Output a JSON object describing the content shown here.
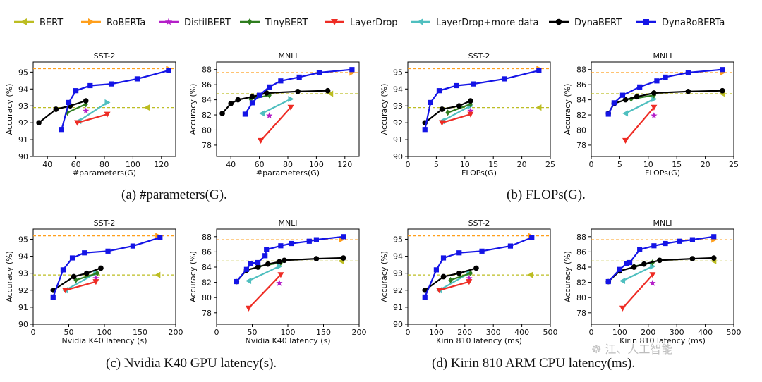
{
  "legend": [
    {
      "name": "BERT",
      "color": "#bcbd22",
      "marker": "tri-left"
    },
    {
      "name": "RoBERTa",
      "color": "#ff9f1c",
      "marker": "tri-right"
    },
    {
      "name": "DistilBERT",
      "color": "#b41ec8",
      "marker": "star"
    },
    {
      "name": "TinyBERT",
      "color": "#2e7d1e",
      "marker": "diamond"
    },
    {
      "name": "LayerDrop",
      "color": "#ee2c24",
      "marker": "tri-down"
    },
    {
      "name": "LayerDrop+more data",
      "color": "#4fbfbf",
      "marker": "tri-left-arrow"
    },
    {
      "name": "DynaBERT",
      "color": "#000000",
      "marker": "circle"
    },
    {
      "name": "DynaRoBERTa",
      "color": "#1414e6",
      "marker": "square"
    }
  ],
  "captions": {
    "a": "(a) #parameters(G).",
    "b": "(b) FLOPs(G).",
    "c": "(c) Nvidia K40 GPU latency(s).",
    "d": "(d) Kirin 810 ARM CPU latency(ms)."
  },
  "watermark": "☸ 江、人工智能",
  "colors": {
    "bert_ref": "#bcbd22",
    "roberta_ref": "#ff9f1c",
    "grid": "#000000"
  },
  "chart_data": [
    {
      "id": "a-sst2",
      "type": "line",
      "title": "SST-2",
      "xlabel": "#parameters(G)",
      "ylabel": "Accuracy (%)",
      "xlim": [
        30,
        130
      ],
      "ylim": [
        90,
        95.6
      ],
      "xticks": [
        40,
        60,
        80,
        100,
        120
      ],
      "yticks": [
        90,
        91,
        92,
        93,
        94,
        95
      ],
      "ref_lines": {
        "bert": 92.9,
        "roberta": 95.2
      },
      "bert_point": [
        110,
        92.9
      ],
      "roberta_point": [
        125,
        95.2
      ],
      "series": [
        {
          "name": "DynaRoBERTa",
          "x": [
            50,
            55,
            60,
            70,
            85,
            103,
            125
          ],
          "y": [
            91.6,
            93.2,
            93.9,
            94.2,
            94.3,
            94.6,
            95.1
          ]
        },
        {
          "name": "DynaBERT",
          "x": [
            34,
            46,
            56,
            67
          ],
          "y": [
            92.0,
            92.8,
            93.0,
            93.3
          ]
        },
        {
          "name": "TinyBERT",
          "x": [
            54,
            67
          ],
          "y": [
            92.6,
            93.1
          ]
        },
        {
          "name": "LayerDrop",
          "x": [
            61,
            82
          ],
          "y": [
            92.0,
            92.5
          ]
        },
        {
          "name": "LayerDrop+more data",
          "x": [
            62,
            82
          ],
          "y": [
            92.1,
            93.2
          ]
        },
        {
          "name": "DistilBERT",
          "x": [
            67
          ],
          "y": [
            92.7
          ]
        }
      ]
    },
    {
      "id": "a-mnli",
      "type": "line",
      "title": "MNLI",
      "xlabel": "#parameters(G)",
      "ylabel": "Accuracy (%)",
      "xlim": [
        30,
        130
      ],
      "ylim": [
        76.5,
        89
      ],
      "xticks": [
        40,
        60,
        80,
        100,
        120
      ],
      "yticks": [
        78,
        80,
        82,
        84,
        86,
        88
      ],
      "ref_lines": {
        "bert": 84.8,
        "roberta": 87.6
      },
      "bert_point": [
        110,
        84.8
      ],
      "roberta_point": [
        125,
        87.6
      ],
      "series": [
        {
          "name": "DynaRoBERTa",
          "x": [
            50,
            55,
            60,
            67,
            75,
            88,
            102,
            125
          ],
          "y": [
            82.1,
            83.6,
            84.6,
            85.7,
            86.5,
            87.0,
            87.6,
            88.0
          ]
        },
        {
          "name": "DynaBERT",
          "x": [
            34,
            40,
            45,
            55,
            65,
            87,
            108
          ],
          "y": [
            82.2,
            83.5,
            84.0,
            84.4,
            84.9,
            85.1,
            85.2
          ]
        },
        {
          "name": "TinyBERT",
          "x": [
            54,
            67
          ],
          "y": [
            84.1,
            84.6
          ]
        },
        {
          "name": "LayerDrop",
          "x": [
            61,
            82
          ],
          "y": [
            78.6,
            83.0
          ]
        },
        {
          "name": "LayerDrop+more data",
          "x": [
            62,
            82
          ],
          "y": [
            82.2,
            84.1
          ]
        },
        {
          "name": "DistilBERT",
          "x": [
            67
          ],
          "y": [
            81.9
          ]
        }
      ]
    },
    {
      "id": "b-sst2",
      "type": "line",
      "title": "SST-2",
      "xlabel": "FLOPs(G)",
      "ylabel": "Accuracy (%)",
      "xlim": [
        0,
        25
      ],
      "ylim": [
        90,
        95.6
      ],
      "xticks": [
        0,
        5,
        10,
        15,
        20,
        25
      ],
      "yticks": [
        90,
        91,
        92,
        93,
        94,
        95
      ],
      "ref_lines": {
        "bert": 92.9,
        "roberta": 95.2
      },
      "bert_point": [
        23,
        92.9
      ],
      "roberta_point": [
        23,
        95.2
      ],
      "series": [
        {
          "name": "DynaRoBERTa",
          "x": [
            3,
            4,
            5.5,
            8.5,
            11.5,
            17,
            23
          ],
          "y": [
            91.6,
            93.2,
            93.9,
            94.2,
            94.3,
            94.6,
            95.1
          ]
        },
        {
          "name": "DynaBERT",
          "x": [
            3,
            6,
            9,
            11
          ],
          "y": [
            92.0,
            92.8,
            93.0,
            93.3
          ]
        },
        {
          "name": "TinyBERT",
          "x": [
            7,
            11
          ],
          "y": [
            92.6,
            93.1
          ]
        },
        {
          "name": "LayerDrop",
          "x": [
            6,
            11
          ],
          "y": [
            92.0,
            92.5
          ]
        },
        {
          "name": "LayerDrop+more data",
          "x": [
            6,
            11
          ],
          "y": [
            92.1,
            93.0
          ]
        },
        {
          "name": "DistilBERT",
          "x": [
            11
          ],
          "y": [
            92.7
          ]
        }
      ]
    },
    {
      "id": "b-mnli",
      "type": "line",
      "title": "MNLI",
      "xlabel": "FLOPs(G)",
      "ylabel": "Accuracy (%)",
      "xlim": [
        0,
        25
      ],
      "ylim": [
        76.5,
        89
      ],
      "xticks": [
        0,
        5,
        10,
        15,
        20,
        25
      ],
      "yticks": [
        78,
        80,
        82,
        84,
        86,
        88
      ],
      "ref_lines": {
        "bert": 84.8,
        "roberta": 87.6
      },
      "bert_point": [
        23,
        84.8
      ],
      "roberta_point": [
        23,
        87.6
      ],
      "series": [
        {
          "name": "DynaRoBERTa",
          "x": [
            3,
            4,
            5.5,
            8.5,
            11.5,
            13,
            17,
            23
          ],
          "y": [
            82.1,
            83.6,
            84.6,
            85.7,
            86.5,
            87.0,
            87.6,
            88.0
          ]
        },
        {
          "name": "DynaBERT",
          "x": [
            3,
            4,
            6,
            8,
            11,
            17,
            23
          ],
          "y": [
            82.2,
            83.5,
            84.0,
            84.4,
            84.9,
            85.1,
            85.2
          ]
        },
        {
          "name": "TinyBERT",
          "x": [
            7,
            11
          ],
          "y": [
            84.1,
            84.6
          ]
        },
        {
          "name": "LayerDrop",
          "x": [
            6,
            11
          ],
          "y": [
            78.6,
            83.0
          ]
        },
        {
          "name": "LayerDrop+more data",
          "x": [
            6,
            11
          ],
          "y": [
            82.2,
            84.1
          ]
        },
        {
          "name": "DistilBERT",
          "x": [
            11
          ],
          "y": [
            81.9
          ]
        }
      ]
    },
    {
      "id": "c-sst2",
      "type": "line",
      "title": "SST-2",
      "xlabel": "Nvidia K40 latency (s)",
      "ylabel": "Accuracy (%)",
      "xlim": [
        0,
        200
      ],
      "ylim": [
        90,
        95.6
      ],
      "xticks": [
        0,
        50,
        100,
        150,
        200
      ],
      "yticks": [
        90,
        91,
        92,
        93,
        94,
        95
      ],
      "ref_lines": {
        "bert": 92.9,
        "roberta": 95.2
      },
      "bert_point": [
        175,
        92.9
      ],
      "roberta_point": [
        175,
        95.2
      ],
      "series": [
        {
          "name": "DynaRoBERTa",
          "x": [
            28,
            42,
            55,
            72,
            105,
            140,
            178
          ],
          "y": [
            91.6,
            93.2,
            93.9,
            94.2,
            94.3,
            94.6,
            95.1
          ]
        },
        {
          "name": "DynaBERT",
          "x": [
            28,
            57,
            75,
            95
          ],
          "y": [
            92.0,
            92.8,
            93.0,
            93.3
          ]
        },
        {
          "name": "TinyBERT",
          "x": [
            60,
            90
          ],
          "y": [
            92.6,
            93.0
          ]
        },
        {
          "name": "LayerDrop",
          "x": [
            45,
            88
          ],
          "y": [
            92.0,
            92.5
          ]
        },
        {
          "name": "LayerDrop+more data",
          "x": [
            45,
            88
          ],
          "y": [
            92.0,
            93.0
          ]
        },
        {
          "name": "DistilBERT",
          "x": [
            88
          ],
          "y": [
            92.7
          ]
        }
      ]
    },
    {
      "id": "c-mnli",
      "type": "line",
      "title": "MNLI",
      "xlabel": "Nvidia K40 latency (s)",
      "ylabel": "Accuracy (%)",
      "xlim": [
        0,
        200
      ],
      "ylim": [
        76.5,
        89
      ],
      "xticks": [
        0,
        50,
        100,
        150,
        200
      ],
      "yticks": [
        78,
        80,
        82,
        84,
        86,
        88
      ],
      "ref_lines": {
        "bert": 84.8,
        "roberta": 87.6
      },
      "bert_point": [
        175,
        84.8
      ],
      "roberta_point": [
        175,
        87.6
      ],
      "series": [
        {
          "name": "DynaRoBERTa",
          "x": [
            28,
            42,
            48,
            58,
            68,
            70,
            90,
            105,
            130,
            140,
            178
          ],
          "y": [
            82.1,
            83.7,
            84.5,
            84.6,
            85.5,
            86.3,
            86.8,
            87.1,
            87.4,
            87.6,
            88.0
          ]
        },
        {
          "name": "DynaBERT",
          "x": [
            28,
            42,
            58,
            72,
            88,
            95,
            140,
            178
          ],
          "y": [
            82.1,
            83.6,
            84.0,
            84.4,
            84.7,
            84.9,
            85.1,
            85.2
          ]
        },
        {
          "name": "TinyBERT",
          "x": [
            60,
            90
          ],
          "y": [
            84.1,
            84.6
          ]
        },
        {
          "name": "LayerDrop",
          "x": [
            45,
            90
          ],
          "y": [
            78.6,
            83.0
          ]
        },
        {
          "name": "LayerDrop+more data",
          "x": [
            45,
            88
          ],
          "y": [
            82.2,
            84.1
          ]
        },
        {
          "name": "DistilBERT",
          "x": [
            88
          ],
          "y": [
            81.9
          ]
        }
      ]
    },
    {
      "id": "d-sst2",
      "type": "line",
      "title": "SST-2",
      "xlabel": "Kirin 810 latency (ms)",
      "ylabel": "Accuracy (%)",
      "xlim": [
        0,
        500
      ],
      "ylim": [
        90,
        95.6
      ],
      "xticks": [
        0,
        100,
        200,
        300,
        400,
        500
      ],
      "yticks": [
        90,
        91,
        92,
        93,
        94,
        95
      ],
      "ref_lines": {
        "bert": 92.9,
        "roberta": 95.2
      },
      "bert_point": [
        430,
        92.9
      ],
      "roberta_point": [
        430,
        95.2
      ],
      "series": [
        {
          "name": "DynaRoBERTa",
          "x": [
            60,
            100,
            125,
            180,
            260,
            360,
            435
          ],
          "y": [
            91.6,
            93.2,
            93.9,
            94.2,
            94.3,
            94.6,
            95.1
          ]
        },
        {
          "name": "DynaBERT",
          "x": [
            60,
            125,
            180,
            240
          ],
          "y": [
            92.0,
            92.8,
            93.0,
            93.3
          ]
        },
        {
          "name": "TinyBERT",
          "x": [
            150,
            220
          ],
          "y": [
            92.6,
            93.0
          ]
        },
        {
          "name": "LayerDrop",
          "x": [
            110,
            215
          ],
          "y": [
            92.0,
            92.5
          ]
        },
        {
          "name": "LayerDrop+more data",
          "x": [
            110,
            215
          ],
          "y": [
            92.0,
            93.0
          ]
        },
        {
          "name": "DistilBERT",
          "x": [
            215
          ],
          "y": [
            92.7
          ]
        }
      ]
    },
    {
      "id": "d-mnli",
      "type": "line",
      "title": "MNLI",
      "xlabel": "Kirin 810 latency (ms)",
      "ylabel": "Accuracy (%)",
      "xlim": [
        0,
        500
      ],
      "ylim": [
        76.5,
        89
      ],
      "xticks": [
        0,
        100,
        200,
        300,
        400,
        500
      ],
      "yticks": [
        78,
        80,
        82,
        84,
        86,
        88
      ],
      "ref_lines": {
        "bert": 84.8,
        "roberta": 87.6
      },
      "bert_point": [
        430,
        84.8
      ],
      "roberta_point": [
        430,
        87.6
      ],
      "series": [
        {
          "name": "DynaRoBERTa",
          "x": [
            60,
            100,
            125,
            135,
            170,
            220,
            260,
            310,
            355,
            430
          ],
          "y": [
            82.1,
            83.7,
            84.5,
            84.6,
            86.3,
            86.8,
            87.1,
            87.4,
            87.6,
            88.0
          ]
        },
        {
          "name": "DynaBERT",
          "x": [
            60,
            100,
            150,
            185,
            240,
            355,
            430
          ],
          "y": [
            82.1,
            83.5,
            84.0,
            84.4,
            84.9,
            85.1,
            85.2
          ]
        },
        {
          "name": "TinyBERT",
          "x": [
            150,
            215
          ],
          "y": [
            84.1,
            84.6
          ]
        },
        {
          "name": "LayerDrop",
          "x": [
            110,
            215
          ],
          "y": [
            78.6,
            83.0
          ]
        },
        {
          "name": "LayerDrop+more data",
          "x": [
            110,
            215
          ],
          "y": [
            82.2,
            84.1
          ]
        },
        {
          "name": "DistilBERT",
          "x": [
            215
          ],
          "y": [
            81.9
          ]
        }
      ]
    }
  ]
}
